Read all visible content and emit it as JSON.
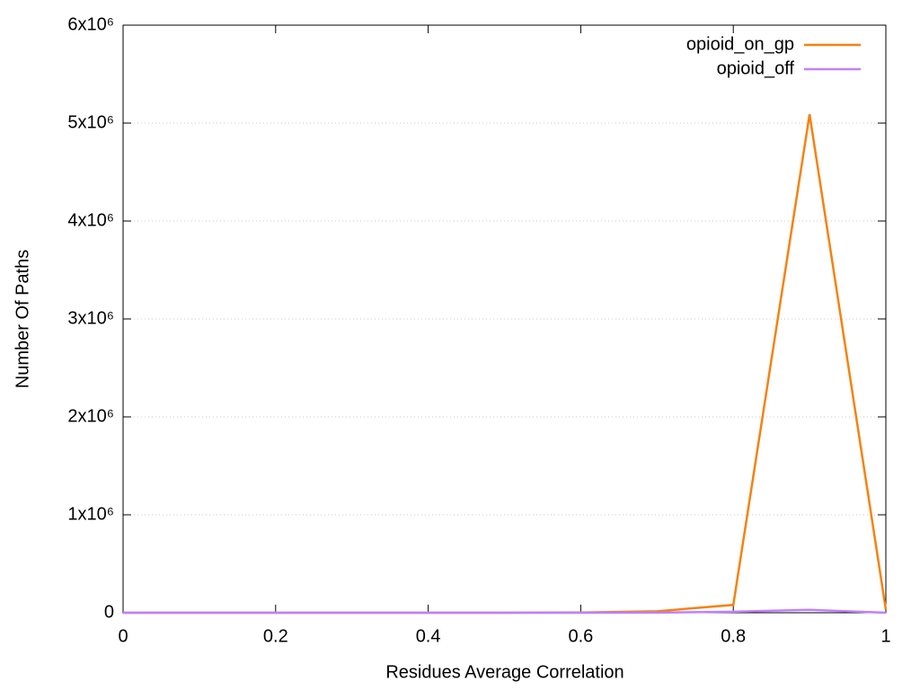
{
  "chart_data": {
    "type": "line",
    "xlabel": "Residues Average Correlation",
    "ylabel": "Number Of Paths",
    "x": [
      0,
      0.1,
      0.2,
      0.3,
      0.4,
      0.5,
      0.6,
      0.7,
      0.8,
      0.9,
      1
    ],
    "series": [
      {
        "name": "opioid_on_gp",
        "color": "#f5820f",
        "values": [
          0,
          0,
          0,
          0,
          0,
          0,
          2000,
          15000,
          80000,
          5090000,
          30000
        ]
      },
      {
        "name": "opioid_off",
        "color": "#c080ff",
        "values": [
          0,
          0,
          0,
          0,
          0,
          0,
          0,
          1000,
          10000,
          30000,
          0
        ]
      }
    ],
    "xlim": [
      0,
      1
    ],
    "xticks": [
      0,
      0.2,
      0.4,
      0.6,
      0.8,
      1
    ],
    "ylim": [
      0,
      6000000
    ],
    "yticks": [
      0,
      {
        "value": 1000000,
        "label": "1x10⁶"
      },
      {
        "value": 2000000,
        "label": "2x10⁶"
      },
      {
        "value": 3000000,
        "label": "3x10⁶"
      },
      {
        "value": 4000000,
        "label": "4x10⁶"
      },
      {
        "value": 5000000,
        "label": "5x10⁶"
      },
      {
        "value": 6000000,
        "label": "6x10⁶"
      }
    ],
    "grid": true,
    "legend": "top-right"
  }
}
